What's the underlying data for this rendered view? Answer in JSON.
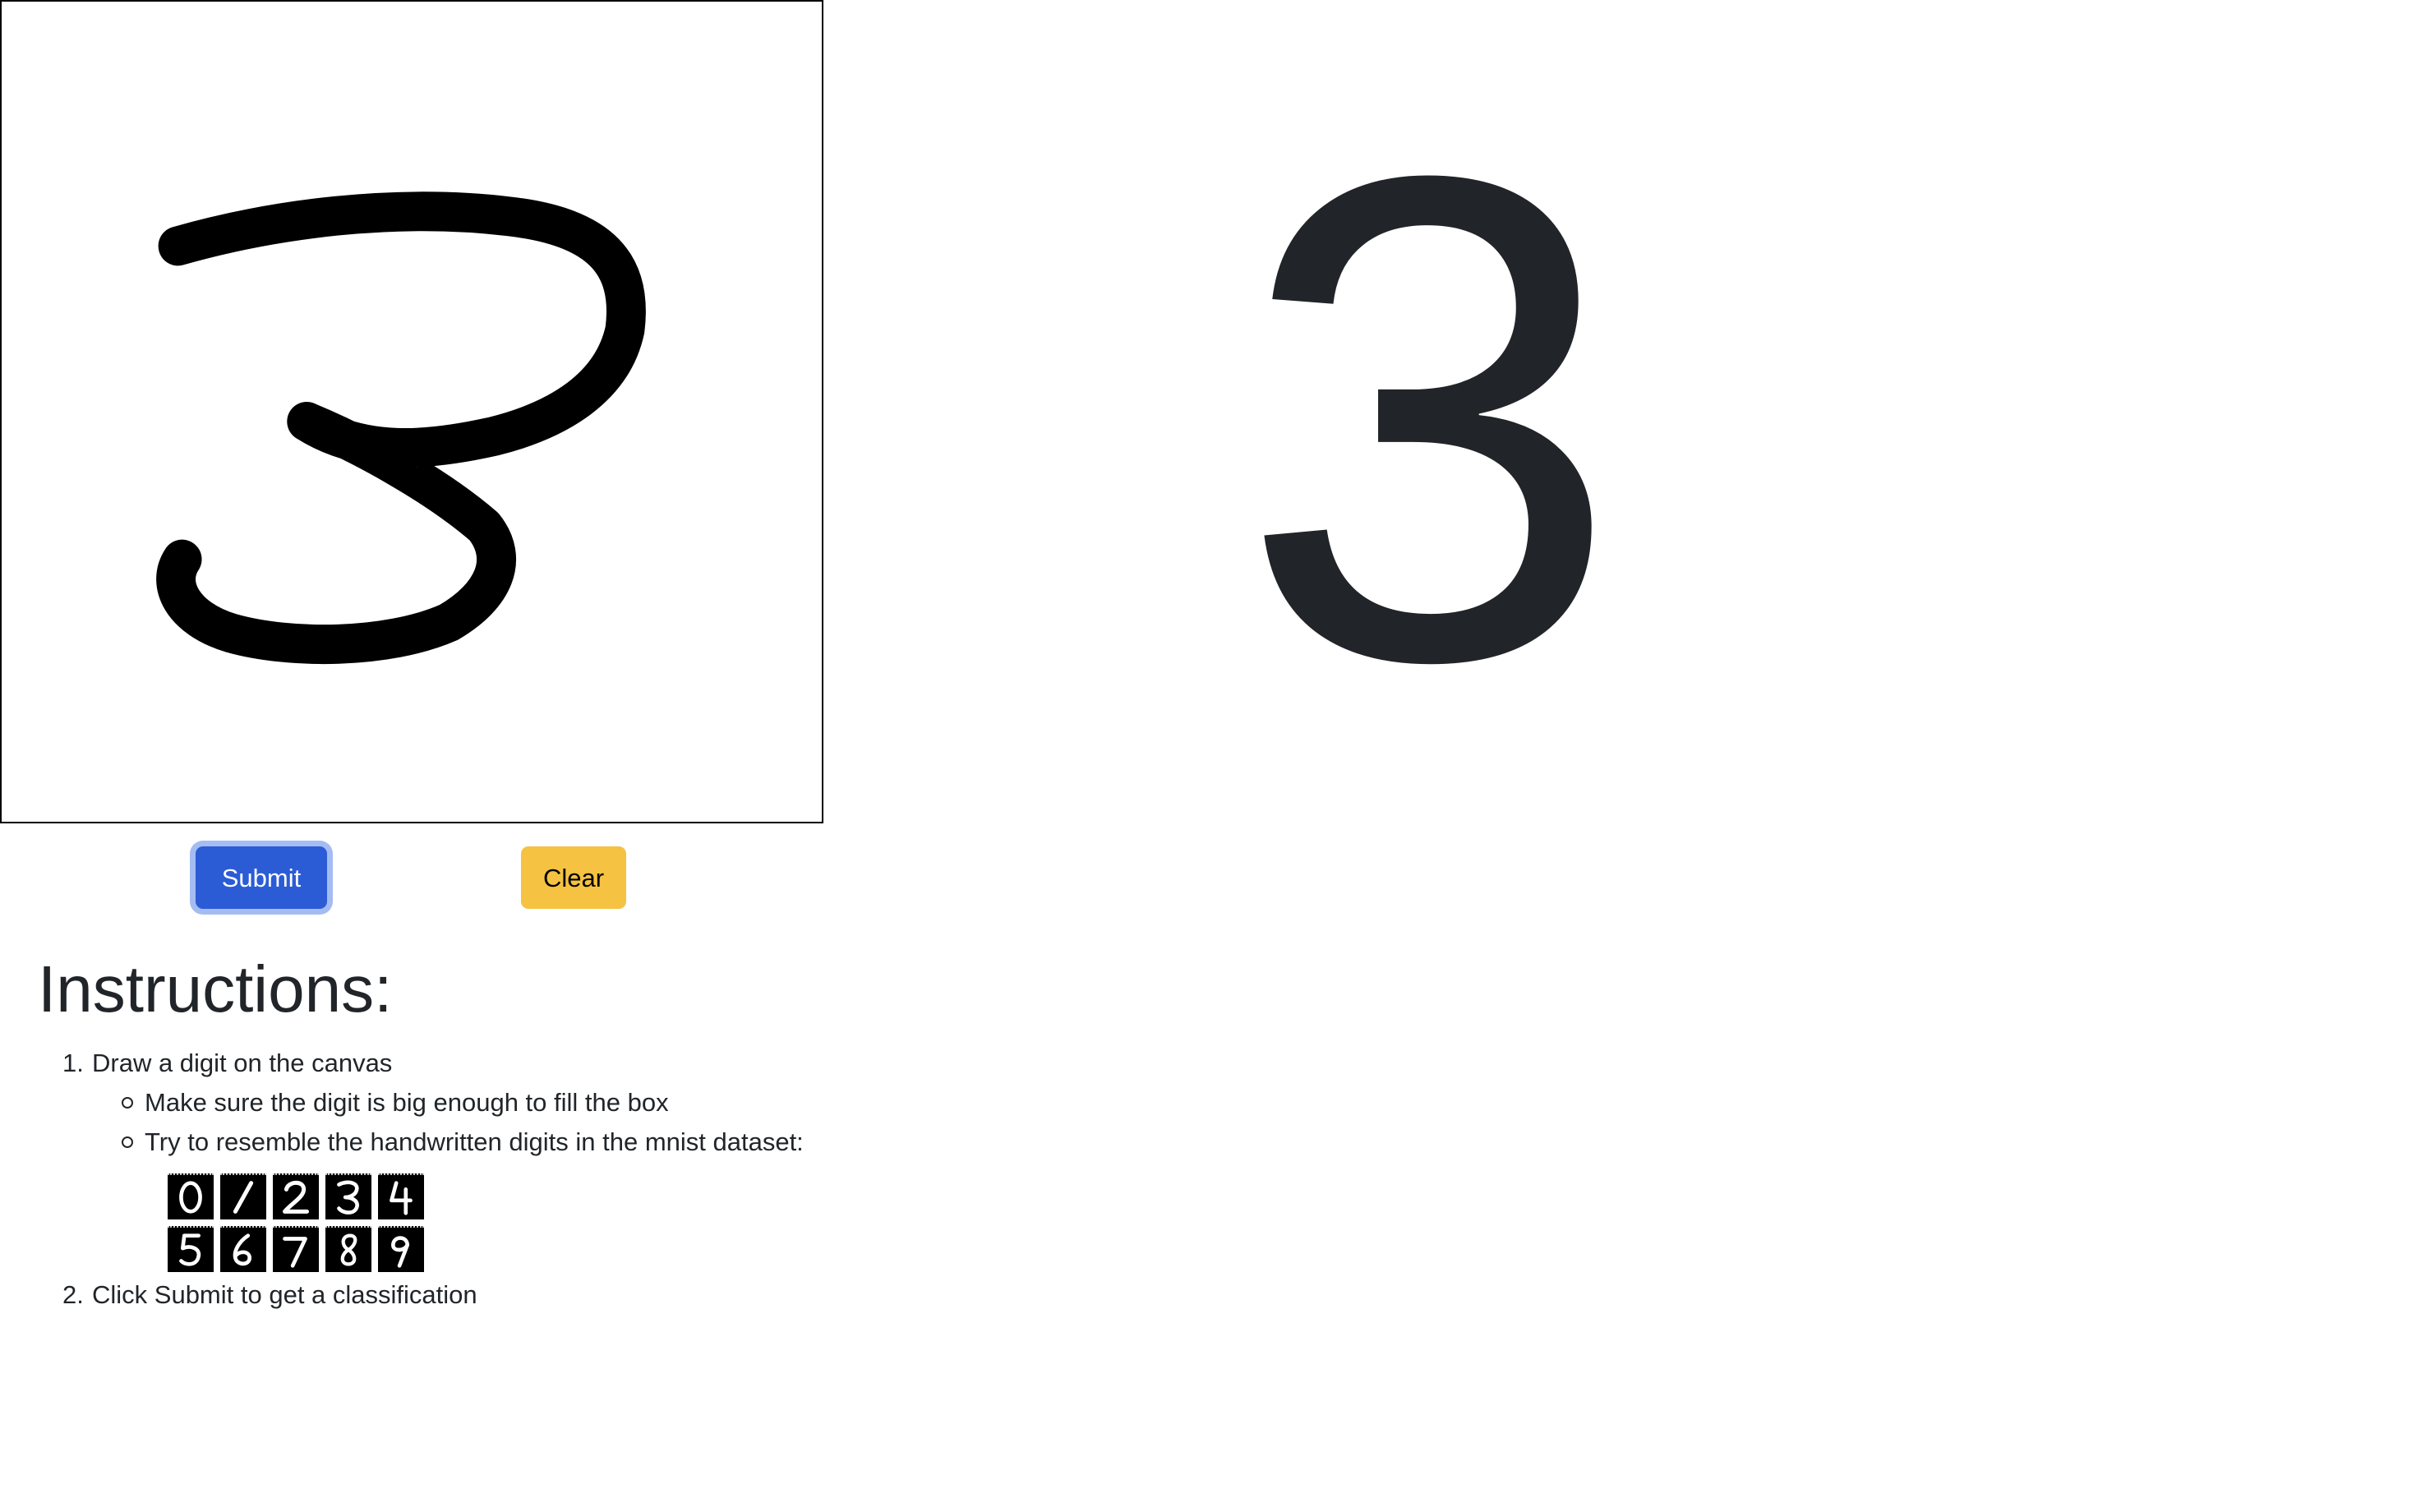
{
  "buttons": {
    "submit_label": "Submit",
    "clear_label": "Clear"
  },
  "prediction": {
    "value": "3"
  },
  "instructions": {
    "title": "Instructions:",
    "steps": [
      {
        "number": "1.",
        "text": "Draw a digit on the canvas",
        "sub_items": [
          "Make sure the digit is big enough to fill the box",
          "Try to resemble the handwritten digits in the mnist dataset:"
        ]
      },
      {
        "number": "2.",
        "text": "Click Submit to get a classification"
      }
    ],
    "mnist_samples": [
      "0",
      "1",
      "2",
      "3",
      "4",
      "5",
      "6",
      "7",
      "8",
      "9"
    ]
  },
  "colors": {
    "submit_bg": "#2b5cd6",
    "clear_bg": "#f5c242",
    "text": "#212529"
  }
}
